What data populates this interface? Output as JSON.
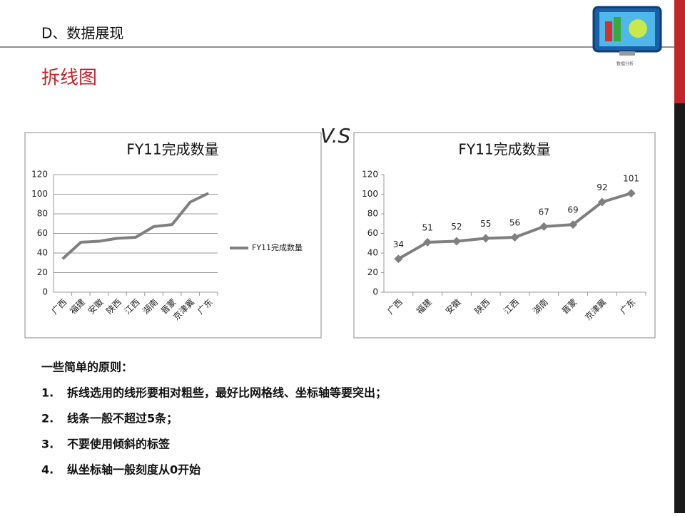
{
  "header": {
    "title": "D、数据展现",
    "section": "拆线图",
    "logo_caption": "数据分析"
  },
  "vs": "V.S",
  "chart_data": [
    {
      "type": "line",
      "title": "FY11完成数量",
      "categories": [
        "广西",
        "福建",
        "安徽",
        "陕西",
        "江西",
        "湖南",
        "晋蒙",
        "京津冀",
        "广东"
      ],
      "series": [
        {
          "name": "FY11完成数量",
          "color": "#7f7f7f",
          "values": [
            34,
            51,
            52,
            55,
            56,
            67,
            69,
            92,
            101
          ]
        }
      ],
      "ylim": [
        0,
        120
      ],
      "yticks": [
        0,
        20,
        40,
        60,
        80,
        100,
        120
      ],
      "grid": true,
      "legend": "right"
    },
    {
      "type": "line",
      "title": "FY11完成数量",
      "categories": [
        "广西",
        "福建",
        "安徽",
        "陕西",
        "江西",
        "湖南",
        "晋蒙",
        "京津冀",
        "广东"
      ],
      "color": "#7f7f7f",
      "values": [
        34,
        51,
        52,
        55,
        56,
        67,
        69,
        92,
        101
      ],
      "ylim": [
        0,
        120
      ],
      "yticks": [
        0,
        20,
        40,
        60,
        80,
        100,
        120
      ],
      "grid": false,
      "markers": "diamond",
      "data_labels": true
    }
  ],
  "principles": {
    "heading": "一些简单的原则：",
    "items": [
      {
        "num": "1.",
        "text": "拆线选用的线形要相对粗些，最好比网格线、坐标轴等要突出；"
      },
      {
        "num": "2.",
        "text": "线条一般不超过5条；"
      },
      {
        "num": "3.",
        "text": "不要使用倾斜的标签"
      },
      {
        "num": "4.",
        "text": "纵坐标轴一般刻度从0开始"
      }
    ]
  }
}
